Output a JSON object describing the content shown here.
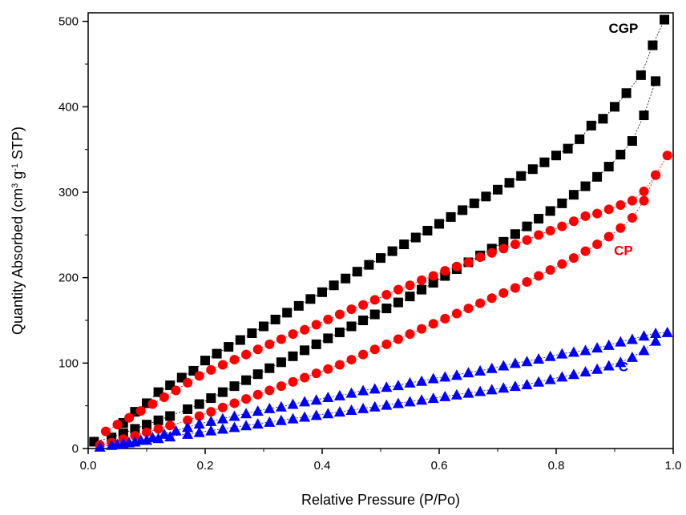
{
  "chart_data": {
    "type": "scatter",
    "xlabel": "Relative Pressure (P/Po)",
    "ylabel": "Quantity Absorbed (cm3 g-1 STP)",
    "ylabel_parts": {
      "main": "Quantity Absorbed (cm",
      "sup1": "3",
      "mid": " g",
      "sup2": "-1",
      "end": " STP)"
    },
    "xlim": [
      0,
      1.0
    ],
    "ylim": [
      0,
      510
    ],
    "xticks": [
      "0.0",
      "0.2",
      "0.4",
      "0.6",
      "0.8",
      "1.0"
    ],
    "yticks": [
      "0",
      "100",
      "200",
      "300",
      "400",
      "500"
    ],
    "xtick_values": [
      0,
      0.2,
      0.4,
      0.6,
      0.8,
      1.0
    ],
    "ytick_values": [
      0,
      100,
      200,
      300,
      400,
      500
    ],
    "grid": false,
    "legend": "none",
    "series": [
      {
        "name": "CGP",
        "marker": "square",
        "color": "#000000",
        "label_anchor": [
          0.915,
          492
        ],
        "adsorption": {
          "x": [
            0.01,
            0.04,
            0.06,
            0.08,
            0.1,
            0.12,
            0.14,
            0.17,
            0.19,
            0.21,
            0.23,
            0.25,
            0.27,
            0.29,
            0.31,
            0.33,
            0.35,
            0.37,
            0.39,
            0.41,
            0.43,
            0.45,
            0.47,
            0.49,
            0.51,
            0.53,
            0.55,
            0.57,
            0.59,
            0.61,
            0.63,
            0.65,
            0.67,
            0.69,
            0.71,
            0.73,
            0.75,
            0.77,
            0.79,
            0.81,
            0.83,
            0.85,
            0.87,
            0.89,
            0.91,
            0.93,
            0.95,
            0.97
          ],
          "y": [
            8,
            13,
            18,
            23,
            28,
            33,
            38,
            46,
            52,
            59,
            66,
            73,
            80,
            87,
            94,
            101,
            108,
            115,
            122,
            129,
            136,
            143,
            150,
            157,
            164,
            171,
            178,
            186,
            194,
            202,
            210,
            218,
            226,
            234,
            242,
            251,
            260,
            269,
            278,
            287,
            297,
            307,
            318,
            330,
            344,
            360,
            390,
            430
          ]
        },
        "desorption": {
          "x": [
            0.985,
            0.965,
            0.945,
            0.92,
            0.9,
            0.88,
            0.86,
            0.84,
            0.82,
            0.8,
            0.78,
            0.76,
            0.74,
            0.72,
            0.7,
            0.68,
            0.66,
            0.64,
            0.62,
            0.6,
            0.58,
            0.56,
            0.54,
            0.52,
            0.5,
            0.48,
            0.46,
            0.44,
            0.42,
            0.4,
            0.38,
            0.36,
            0.34,
            0.32,
            0.3,
            0.28,
            0.26,
            0.24,
            0.22,
            0.2,
            0.18,
            0.16,
            0.14,
            0.12,
            0.1,
            0.08,
            0.06
          ],
          "y": [
            502,
            472,
            437,
            416,
            400,
            386,
            378,
            362,
            351,
            343,
            335,
            327,
            319,
            311,
            303,
            295,
            287,
            279,
            271,
            263,
            255,
            247,
            239,
            231,
            223,
            215,
            207,
            199,
            191,
            183,
            175,
            167,
            159,
            151,
            143,
            135,
            127,
            119,
            111,
            103,
            91,
            83,
            74,
            66,
            53,
            43,
            30
          ]
        }
      },
      {
        "name": "CP",
        "marker": "circle",
        "color": "#ff0000",
        "label_anchor": [
          0.915,
          232
        ],
        "adsorption": {
          "x": [
            0.02,
            0.04,
            0.06,
            0.08,
            0.1,
            0.12,
            0.14,
            0.17,
            0.19,
            0.21,
            0.23,
            0.25,
            0.27,
            0.29,
            0.31,
            0.33,
            0.35,
            0.37,
            0.39,
            0.41,
            0.43,
            0.45,
            0.47,
            0.49,
            0.51,
            0.53,
            0.55,
            0.57,
            0.59,
            0.61,
            0.63,
            0.65,
            0.67,
            0.69,
            0.71,
            0.73,
            0.75,
            0.77,
            0.79,
            0.81,
            0.83,
            0.85,
            0.87,
            0.89,
            0.91,
            0.93,
            0.95,
            0.97
          ],
          "y": [
            4,
            7,
            11,
            15,
            19,
            23,
            27,
            33,
            38,
            43,
            48,
            53,
            58,
            63,
            68,
            73,
            78,
            83,
            88,
            93,
            98,
            104,
            110,
            116,
            122,
            128,
            134,
            140,
            146,
            152,
            158,
            164,
            170,
            176,
            182,
            188,
            195,
            202,
            209,
            216,
            223,
            231,
            239,
            248,
            258,
            270,
            290,
            320
          ]
        },
        "desorption": {
          "x": [
            0.99,
            0.97,
            0.95,
            0.93,
            0.91,
            0.89,
            0.87,
            0.85,
            0.83,
            0.81,
            0.79,
            0.77,
            0.75,
            0.73,
            0.71,
            0.69,
            0.67,
            0.65,
            0.63,
            0.61,
            0.59,
            0.57,
            0.55,
            0.53,
            0.51,
            0.49,
            0.47,
            0.45,
            0.43,
            0.41,
            0.39,
            0.37,
            0.35,
            0.33,
            0.31,
            0.29,
            0.27,
            0.25,
            0.23,
            0.21,
            0.19,
            0.17,
            0.15,
            0.13,
            0.11,
            0.09,
            0.07,
            0.05,
            0.03
          ],
          "y": [
            343,
            320,
            301,
            290,
            285,
            280,
            275,
            272,
            266,
            260,
            255,
            250,
            244,
            239,
            234,
            229,
            224,
            218,
            213,
            208,
            202,
            197,
            191,
            186,
            180,
            174,
            168,
            163,
            157,
            151,
            145,
            139,
            134,
            128,
            122,
            116,
            110,
            104,
            98,
            92,
            85,
            77,
            68,
            60,
            52,
            44,
            36,
            28,
            20
          ]
        }
      },
      {
        "name": "C",
        "marker": "triangle",
        "color": "#0000ff",
        "label_anchor": [
          0.915,
          96
        ],
        "adsorption": {
          "x": [
            0.02,
            0.04,
            0.06,
            0.08,
            0.1,
            0.12,
            0.14,
            0.17,
            0.19,
            0.21,
            0.23,
            0.25,
            0.27,
            0.29,
            0.31,
            0.33,
            0.35,
            0.37,
            0.39,
            0.41,
            0.43,
            0.45,
            0.47,
            0.49,
            0.51,
            0.53,
            0.55,
            0.57,
            0.59,
            0.61,
            0.63,
            0.65,
            0.67,
            0.69,
            0.71,
            0.73,
            0.75,
            0.77,
            0.79,
            0.81,
            0.83,
            0.85,
            0.87,
            0.89,
            0.91,
            0.93,
            0.95,
            0.97
          ],
          "y": [
            2,
            4,
            6,
            8,
            10,
            12,
            14,
            17,
            19,
            21,
            23,
            25,
            27,
            29,
            31,
            33,
            35,
            37,
            39,
            41,
            43,
            45,
            47,
            49,
            51,
            53,
            55,
            57,
            59,
            61,
            63,
            65,
            67,
            69,
            71,
            73,
            75,
            78,
            81,
            84,
            87,
            90,
            93,
            97,
            101,
            107,
            115,
            126
          ]
        },
        "desorption": {
          "x": [
            0.99,
            0.97,
            0.95,
            0.93,
            0.91,
            0.89,
            0.87,
            0.85,
            0.83,
            0.81,
            0.79,
            0.77,
            0.75,
            0.73,
            0.71,
            0.69,
            0.67,
            0.65,
            0.63,
            0.61,
            0.59,
            0.57,
            0.55,
            0.53,
            0.51,
            0.49,
            0.47,
            0.45,
            0.43,
            0.41,
            0.39,
            0.37,
            0.35,
            0.33,
            0.31,
            0.29,
            0.27,
            0.25,
            0.23,
            0.21,
            0.19,
            0.17,
            0.15,
            0.13,
            0.11,
            0.09,
            0.07,
            0.05
          ],
          "y": [
            136,
            135,
            132,
            128,
            125,
            121,
            118,
            115,
            113,
            111,
            108,
            105,
            102,
            100,
            97,
            94,
            91,
            89,
            86,
            84,
            82,
            79,
            77,
            74,
            72,
            70,
            68,
            65,
            62,
            60,
            57,
            55,
            52,
            49,
            47,
            44,
            41,
            38,
            35,
            32,
            29,
            25,
            21,
            17,
            13,
            10,
            7,
            5
          ]
        }
      }
    ]
  }
}
